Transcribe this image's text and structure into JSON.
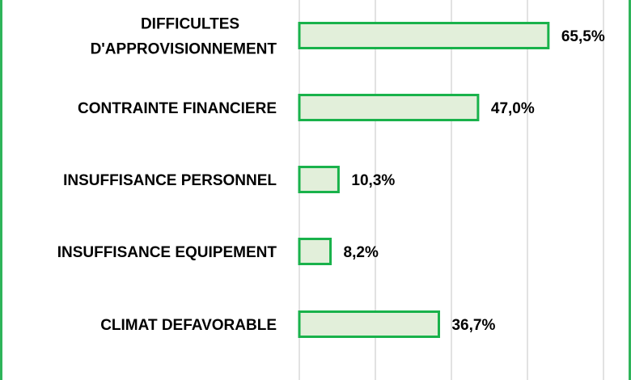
{
  "chart_data": {
    "type": "bar",
    "orientation": "horizontal",
    "categories": [
      [
        "DIFFICULTES",
        "D'APPROVISIONNEMENT"
      ],
      [
        "CONTRAINTE FINANCIERE"
      ],
      [
        "INSUFFISANCE PERSONNEL"
      ],
      [
        "INSUFFISANCE EQUIPEMENT"
      ],
      [
        "CLIMAT DEFAVORABLE"
      ]
    ],
    "values": [
      65.5,
      47.0,
      10.3,
      8.2,
      36.7
    ],
    "value_labels": [
      "65,5%",
      "47,0%",
      "10,3%",
      "8,2%",
      "36,7%"
    ],
    "unit": "%",
    "xlim": [
      0,
      80
    ],
    "grid": true,
    "colors": {
      "bar_fill": "#e2efda",
      "bar_stroke": "#19b24b",
      "grid": "#d9d9d9",
      "frame": "#2eb45a"
    }
  }
}
